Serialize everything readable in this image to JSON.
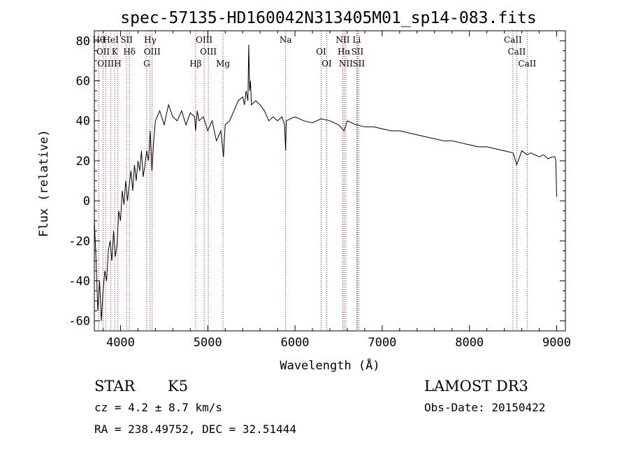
{
  "chart_data": {
    "type": "line",
    "title": "spec-57135-HD160042N313405M01_sp14-083.fits",
    "xlabel": "Wavelength (Å)",
    "ylabel": "Flux (relative)",
    "xlim": [
      3700,
      9100
    ],
    "ylim": [
      -65,
      85
    ],
    "xticks": [
      4000,
      5000,
      6000,
      7000,
      8000,
      9000
    ],
    "yticks": [
      -60,
      -40,
      -20,
      0,
      20,
      40,
      60,
      80
    ],
    "grid": false,
    "line_color": "#000000",
    "marker_color": "#b22222",
    "series": [
      {
        "x": [
          3700,
          3720,
          3740,
          3760,
          3780,
          3800,
          3820,
          3840,
          3860,
          3880,
          3900,
          3920,
          3940,
          3960,
          3980,
          4000,
          4020,
          4040,
          4060,
          4080,
          4100,
          4120,
          4140,
          4160,
          4180,
          4200,
          4220,
          4240,
          4260,
          4280,
          4300,
          4320,
          4340,
          4360,
          4380,
          4400,
          4450,
          4500,
          4550,
          4600,
          4650,
          4700,
          4750,
          4800,
          4850,
          4860,
          4880,
          4900,
          4950,
          5000,
          5050,
          5100,
          5150,
          5180,
          5200,
          5250,
          5300,
          5350,
          5400,
          5420,
          5440,
          5460,
          5470,
          5480,
          5490,
          5500,
          5550,
          5600,
          5650,
          5700,
          5750,
          5800,
          5850,
          5880,
          5893,
          5900,
          5950,
          6000,
          6100,
          6200,
          6300,
          6400,
          6500,
          6563,
          6600,
          6700,
          6800,
          6900,
          7000,
          7100,
          7200,
          7300,
          7400,
          7500,
          7600,
          7700,
          7800,
          7900,
          8000,
          8100,
          8200,
          8300,
          8400,
          8500,
          8542,
          8600,
          8662,
          8700,
          8800,
          8850,
          8900,
          8950,
          8980,
          8990,
          9000
        ],
        "y": [
          -10,
          -30,
          -55,
          -40,
          -60,
          -45,
          -35,
          -40,
          -25,
          -20,
          -30,
          -15,
          -28,
          -22,
          -5,
          -10,
          5,
          -2,
          10,
          0,
          8,
          15,
          5,
          18,
          10,
          20,
          15,
          25,
          12,
          18,
          25,
          20,
          35,
          15,
          30,
          40,
          45,
          38,
          48,
          42,
          40,
          45,
          38,
          44,
          42,
          35,
          45,
          40,
          42,
          35,
          40,
          30,
          35,
          22,
          38,
          40,
          45,
          50,
          52,
          48,
          55,
          50,
          78,
          55,
          60,
          48,
          50,
          48,
          45,
          40,
          42,
          40,
          42,
          38,
          25,
          40,
          41,
          42,
          40,
          39,
          41,
          40,
          38,
          35,
          40,
          38,
          37,
          37,
          36,
          35,
          35,
          34,
          33,
          32,
          31,
          30,
          30,
          29,
          28,
          27,
          27,
          26,
          25,
          24,
          18,
          25,
          23,
          24,
          22,
          23,
          21,
          22,
          22,
          20,
          2
        ]
      }
    ],
    "lines_top": [
      {
        "w": 3750,
        "label": "Hθ"
      },
      {
        "w": 3800,
        "label": "OII"
      },
      {
        "w": 3830,
        "label": "OIII"
      },
      {
        "w": 3889,
        "label": "HeI"
      },
      {
        "w": 3934,
        "label": "K"
      },
      {
        "w": 3968,
        "label": "H"
      },
      {
        "w": 4070,
        "label": "SII"
      },
      {
        "w": 4102,
        "label": "Hδ"
      },
      {
        "w": 4300,
        "label": "G"
      },
      {
        "w": 4340,
        "label": "Hγ"
      },
      {
        "w": 4363,
        "label": "OIII"
      },
      {
        "w": 4861,
        "label": "Hβ"
      },
      {
        "w": 4959,
        "label": "OIII"
      },
      {
        "w": 5007,
        "label": "OIII"
      },
      {
        "w": 5175,
        "label": "Mg"
      },
      {
        "w": 5893,
        "label": "Na"
      },
      {
        "w": 6300,
        "label": "OI"
      },
      {
        "w": 6364,
        "label": "OI"
      },
      {
        "w": 6548,
        "label": "NII"
      },
      {
        "w": 6563,
        "label": "Hα"
      },
      {
        "w": 6583,
        "label": "NII"
      },
      {
        "w": 6708,
        "label": "Li"
      },
      {
        "w": 6716,
        "label": "SII"
      },
      {
        "w": 6731,
        "label": "SII"
      },
      {
        "w": 8498,
        "label": "CaII"
      },
      {
        "w": 8542,
        "label": "CaII"
      },
      {
        "w": 8662,
        "label": "CaII"
      }
    ]
  },
  "info": {
    "class_label": "STAR",
    "subclass": "K5",
    "survey": "LAMOST DR3",
    "cz": "cz = 4.2 ± 8.7 km/s",
    "obs_date": "Obs-Date: 20150422",
    "coords": "RA = 238.49752, DEC =  32.51444"
  }
}
